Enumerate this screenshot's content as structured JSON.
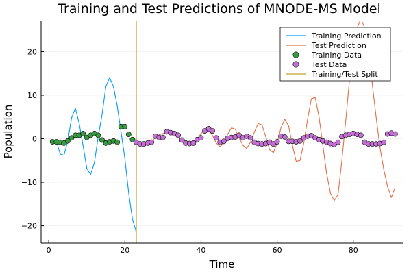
{
  "chart_data": {
    "type": "line",
    "title": "Training and Test Predictions of MNODE-MS Model",
    "xlabel": "Time",
    "ylabel": "Population",
    "xlim": [
      -2,
      93
    ],
    "ylim": [
      -24,
      27
    ],
    "xticks": [
      0,
      20,
      40,
      60,
      80
    ],
    "yticks": [
      -20,
      -10,
      0,
      10,
      20
    ],
    "xtick_labels": [
      "0",
      "20",
      "40",
      "60",
      "80"
    ],
    "ytick_labels": [
      "−20",
      "−10",
      "0",
      "10",
      "20"
    ],
    "grid": true,
    "legend_position": "top-right",
    "split_x": 23,
    "series": [
      {
        "name": "Training Prediction",
        "kind": "line",
        "color": "#009AFA",
        "x": [
          1,
          2,
          3,
          4,
          5,
          6,
          7,
          8,
          9,
          10,
          11,
          12,
          13,
          14,
          15,
          16,
          17,
          18,
          19,
          20,
          21,
          22,
          23
        ],
        "y": [
          -0.8,
          -0.5,
          -3.5,
          -3.8,
          -0.5,
          4.8,
          7.0,
          3.5,
          -1.5,
          -6.8,
          -8.2,
          -5.5,
          0.5,
          5.5,
          12.0,
          14.0,
          12.0,
          7.5,
          1.5,
          -4.5,
          -12.5,
          -18.5,
          -21.5
        ]
      },
      {
        "name": "Test Prediction",
        "kind": "line",
        "color": "#E26F46",
        "x": [
          23,
          24,
          25,
          26,
          27,
          28,
          29,
          30,
          31,
          32,
          33,
          34,
          35,
          36,
          37,
          38,
          39,
          40,
          41,
          42,
          43,
          44,
          45,
          46,
          47,
          48,
          49,
          50,
          51,
          52,
          53,
          54,
          55,
          56,
          57,
          58,
          59,
          60,
          61,
          62,
          63,
          64,
          65,
          66,
          67,
          68,
          69,
          70,
          71,
          72,
          73,
          74,
          75,
          76,
          77,
          78,
          79,
          80,
          81,
          82,
          83,
          84,
          85,
          86,
          87,
          88,
          89,
          90,
          91
        ],
        "y": [
          -0.5,
          -1.0,
          -1.2,
          -1.0,
          -0.6,
          0.2,
          0.9,
          1.2,
          1.5,
          1.6,
          1.2,
          0.5,
          -0.3,
          -1.0,
          -1.5,
          -1.2,
          -0.2,
          1.2,
          2.0,
          2.0,
          0.8,
          -1.0,
          -1.8,
          -1.0,
          1.0,
          2.5,
          2.2,
          0.2,
          -1.5,
          -2.2,
          -0.8,
          1.5,
          3.5,
          3.2,
          0.5,
          -2.5,
          -3.2,
          -1.0,
          2.5,
          4.5,
          3.0,
          -1.5,
          -5.2,
          -5.0,
          -1.0,
          4.5,
          9.2,
          9.5,
          5.0,
          -1.5,
          -8.0,
          -12.5,
          -14.2,
          -12.8,
          -5.0,
          4.0,
          13.5,
          20.5,
          25.5,
          27.5,
          25.5,
          20.5,
          12.5,
          5.0,
          -2.0,
          -7.0,
          -11.0,
          -13.5,
          -11.2
        ]
      },
      {
        "name": "Training Data",
        "kind": "scatter",
        "color": "#3A9A44",
        "x": [
          1,
          2,
          3,
          4,
          5,
          6,
          7,
          8,
          9,
          10,
          11,
          12,
          13,
          14,
          15,
          16,
          17,
          18,
          19,
          20,
          21,
          22
        ],
        "y": [
          -0.7,
          -0.7,
          -0.8,
          -1.0,
          -0.5,
          0.2,
          0.8,
          0.8,
          1.2,
          0.3,
          0.8,
          1.2,
          0.8,
          -0.3,
          -1.0,
          -0.7,
          -0.5,
          -0.8,
          2.8,
          2.8,
          1.0,
          -0.2
        ]
      },
      {
        "name": "Test Data",
        "kind": "scatter",
        "color": "#C271D2",
        "x": [
          23,
          24,
          25,
          26,
          27,
          28,
          29,
          30,
          31,
          32,
          33,
          34,
          35,
          36,
          37,
          38,
          39,
          40,
          41,
          42,
          43,
          44,
          45,
          46,
          47,
          48,
          49,
          50,
          51,
          52,
          53,
          54,
          55,
          56,
          57,
          58,
          59,
          60,
          61,
          62,
          63,
          64,
          65,
          66,
          67,
          68,
          69,
          70,
          71,
          72,
          73,
          74,
          75,
          76,
          77,
          78,
          79,
          80,
          81,
          82,
          83,
          84,
          85,
          86,
          87,
          88,
          89,
          90,
          91
        ],
        "y": [
          -0.8,
          -1.2,
          -1.2,
          -1.0,
          -0.8,
          0.6,
          0.3,
          0.3,
          1.6,
          1.4,
          1.2,
          0.8,
          -0.3,
          -1.0,
          -1.1,
          -1.0,
          -0.2,
          0.2,
          1.8,
          2.3,
          1.8,
          0.2,
          -0.8,
          -0.6,
          0.1,
          0.3,
          0.4,
          0.8,
          0.2,
          0.6,
          0.2,
          -0.8,
          -1.1,
          -1.2,
          -1.1,
          -0.8,
          -1.2,
          -0.7,
          0.6,
          0.4,
          -0.6,
          -0.6,
          -0.7,
          -0.5,
          0.2,
          0.6,
          0.7,
          0.2,
          -0.2,
          -0.5,
          -0.8,
          -1.1,
          -1.3,
          -0.8,
          0.5,
          0.8,
          1.0,
          1.2,
          1.0,
          0.8,
          -0.8,
          -1.2,
          -1.2,
          -1.2,
          -1.1,
          -0.8,
          1.1,
          1.3,
          1.1
        ]
      },
      {
        "name": "Training/Test Split",
        "kind": "vline",
        "color": "#C2A02E",
        "x": 23
      }
    ]
  }
}
